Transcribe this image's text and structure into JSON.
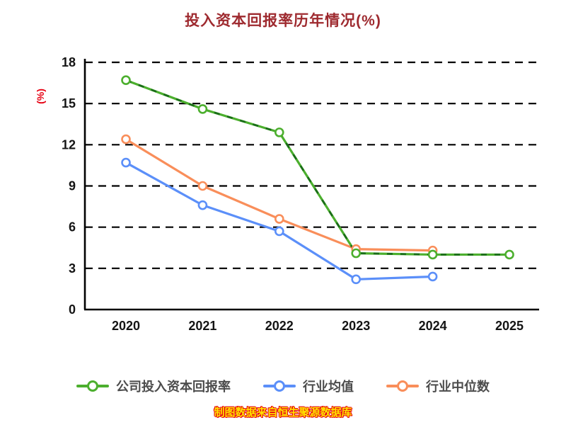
{
  "title": "投入资本回报率历年情况(%)",
  "caption": "制图数据来自恒生聚源数据库",
  "colors": {
    "title": "#9E2A2F",
    "ylabel": "#E60012",
    "axis": "#000000",
    "tick_labels": "#141414",
    "gridline": "#000000",
    "caption_fill": "#FFE100",
    "caption_outline": "#E60012",
    "background": "#FFFFFF",
    "marker_fill": "#FFFFFF"
  },
  "chart_data": {
    "type": "line",
    "title": "投入资本回报率历年情况(%)",
    "categories": [
      "2020",
      "2021",
      "2022",
      "2023",
      "2024",
      "2025"
    ],
    "xlabel": "",
    "ylabel": "(%)",
    "ylim": [
      0,
      18
    ],
    "yticks": [
      0,
      3,
      6,
      9,
      12,
      15,
      18
    ],
    "grid": "horizontal-dashed",
    "legend_position": "bottom",
    "series": [
      {
        "name": "公司投入资本回报率",
        "color": "#4CAF2E",
        "dash_overlay": true,
        "dash_overlay_color": "#1A6B1A",
        "values": [
          16.7,
          14.6,
          12.9,
          4.1,
          4.0,
          4.0
        ]
      },
      {
        "name": "行业均值",
        "color": "#5B8FF9",
        "dash_overlay": false,
        "values": [
          10.7,
          7.6,
          5.7,
          2.2,
          2.4,
          null
        ]
      },
      {
        "name": "行业中位数",
        "color": "#F98E5A",
        "dash_overlay": false,
        "values": [
          12.4,
          9.0,
          6.6,
          4.4,
          4.3,
          null
        ]
      }
    ]
  }
}
